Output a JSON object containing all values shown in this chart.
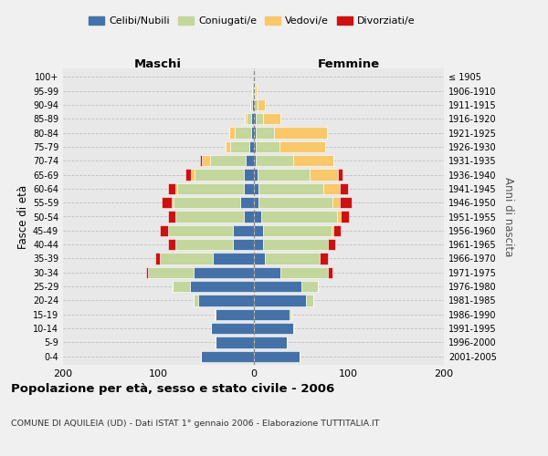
{
  "age_groups": [
    "0-4",
    "5-9",
    "10-14",
    "15-19",
    "20-24",
    "25-29",
    "30-34",
    "35-39",
    "40-44",
    "45-49",
    "50-54",
    "55-59",
    "60-64",
    "65-69",
    "70-74",
    "75-79",
    "80-84",
    "85-89",
    "90-94",
    "95-99",
    "100+"
  ],
  "birth_years": [
    "2001-2005",
    "1996-2000",
    "1991-1995",
    "1986-1990",
    "1981-1985",
    "1976-1980",
    "1971-1975",
    "1966-1970",
    "1961-1965",
    "1956-1960",
    "1951-1955",
    "1946-1950",
    "1941-1945",
    "1936-1940",
    "1931-1935",
    "1926-1930",
    "1921-1925",
    "1916-1920",
    "1911-1915",
    "1906-1910",
    "≤ 1905"
  ],
  "males": {
    "celibi": [
      55,
      40,
      45,
      40,
      58,
      67,
      63,
      43,
      22,
      22,
      10,
      14,
      10,
      10,
      8,
      4,
      2,
      2,
      1,
      0,
      0
    ],
    "coniugati": [
      0,
      0,
      0,
      1,
      5,
      18,
      48,
      55,
      60,
      68,
      72,
      70,
      70,
      52,
      38,
      20,
      18,
      5,
      2,
      1,
      0
    ],
    "vedovi": [
      0,
      0,
      0,
      0,
      0,
      0,
      0,
      0,
      0,
      0,
      0,
      2,
      2,
      4,
      8,
      5,
      5,
      2,
      0,
      0,
      0
    ],
    "divorziati": [
      0,
      0,
      0,
      0,
      0,
      0,
      2,
      5,
      8,
      8,
      8,
      10,
      8,
      5,
      2,
      0,
      0,
      0,
      0,
      0,
      0
    ]
  },
  "females": {
    "nubili": [
      48,
      35,
      42,
      38,
      55,
      50,
      28,
      12,
      10,
      10,
      8,
      5,
      5,
      4,
      2,
      2,
      2,
      2,
      0,
      0,
      0
    ],
    "coniugate": [
      0,
      0,
      1,
      2,
      8,
      18,
      50,
      58,
      68,
      72,
      80,
      78,
      68,
      55,
      40,
      25,
      20,
      8,
      4,
      1,
      0
    ],
    "vedove": [
      0,
      0,
      0,
      0,
      0,
      0,
      0,
      0,
      0,
      2,
      4,
      8,
      18,
      30,
      42,
      48,
      55,
      18,
      8,
      2,
      0
    ],
    "divorziate": [
      0,
      0,
      0,
      0,
      0,
      0,
      5,
      8,
      8,
      8,
      8,
      12,
      8,
      5,
      0,
      0,
      0,
      0,
      0,
      0,
      0
    ]
  },
  "colors": {
    "celibi": "#4472a8",
    "coniugati": "#c3d69b",
    "vedovi": "#f9c86a",
    "divorziati": "#cc1111"
  },
  "title": "Popolazione per età, sesso e stato civile - 2006",
  "subtitle": "COMUNE DI AQUILEIA (UD) - Dati ISTAT 1° gennaio 2006 - Elaborazione TUTTITALIA.IT",
  "xlabel_left": "Maschi",
  "xlabel_right": "Femmine",
  "ylabel_left": "Fasce di età",
  "ylabel_right": "Anni di nascita",
  "xlim": 200,
  "legend_labels": [
    "Celibi/Nubili",
    "Coniugati/e",
    "Vedovi/e",
    "Divorziati/e"
  ],
  "background_color": "#f0f0f0",
  "plot_bg_color": "#e8e8e8",
  "grid_color": "#bbbbbb"
}
